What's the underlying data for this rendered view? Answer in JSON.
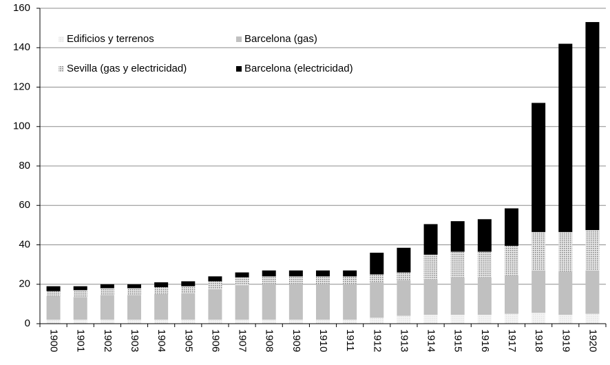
{
  "chart_data": {
    "type": "stacked_bar",
    "categories": [
      "1900",
      "1901",
      "1902",
      "1903",
      "1904",
      "1905",
      "1906",
      "1907",
      "1908",
      "1909",
      "1910",
      "1911",
      "1912",
      "1913",
      "1914",
      "1915",
      "1916",
      "1917",
      "1918",
      "1919",
      "1920"
    ],
    "series": [
      {
        "name": "Edificios y terrenos",
        "color": "#e3e3e3",
        "values": [
          2,
          2,
          2,
          2,
          2,
          2,
          2,
          2,
          2,
          2,
          2,
          2,
          3,
          4,
          4.5,
          4.5,
          4.5,
          5,
          5.5,
          4.5,
          5
        ]
      },
      {
        "name": "Barcelona (gas)",
        "color": "#c0c0c0",
        "values": [
          12,
          11.5,
          12.5,
          12.5,
          13,
          13.5,
          15.5,
          17.5,
          18,
          18,
          18,
          18,
          18,
          18,
          18,
          19,
          19,
          19.5,
          21.5,
          22,
          22
        ]
      },
      {
        "name": "Sevilla (gas y electricidad)",
        "color": "#808080",
        "values": [
          2.5,
          3.5,
          3.5,
          3.5,
          3.5,
          3.5,
          4,
          4,
          4,
          4,
          4,
          4,
          4,
          4,
          12.5,
          13,
          13,
          15,
          19.5,
          20,
          20.5
        ]
      },
      {
        "name": "Barcelona (electricidad)",
        "color": "#000000",
        "values": [
          2.5,
          2,
          2,
          2,
          2.5,
          2.5,
          2.5,
          2.5,
          3,
          3,
          3,
          3,
          11,
          12.5,
          15.5,
          15.5,
          16.5,
          19,
          65.5,
          95.5,
          105.5
        ]
      }
    ],
    "ylim": [
      0,
      160
    ],
    "yticks": [
      0,
      20,
      40,
      60,
      80,
      100,
      120,
      140,
      160
    ],
    "grid": true
  }
}
